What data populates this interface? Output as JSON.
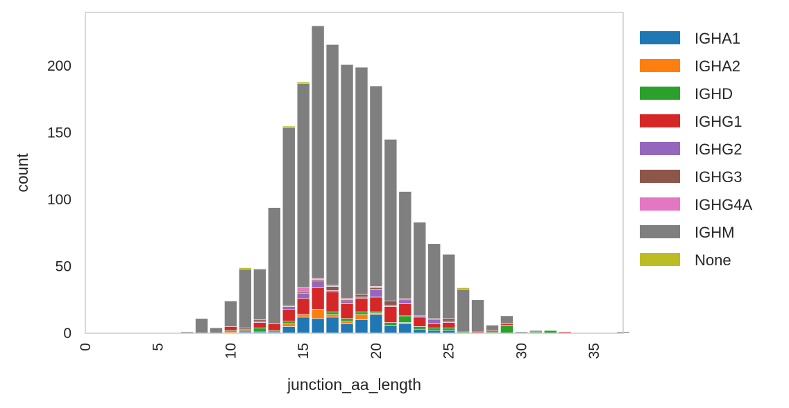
{
  "chart_data": {
    "type": "bar",
    "stacked": true,
    "title": "",
    "xlabel": "junction_aa_length",
    "ylabel": "count",
    "xlim": [
      0,
      37
    ],
    "ylim": [
      0,
      240
    ],
    "xticks": [
      0,
      5,
      10,
      15,
      20,
      25,
      30,
      35
    ],
    "yticks": [
      0,
      50,
      100,
      150,
      200
    ],
    "grid": false,
    "legend_position": "outside-right",
    "x": [
      7,
      8,
      9,
      10,
      11,
      12,
      13,
      14,
      15,
      16,
      17,
      18,
      19,
      20,
      21,
      22,
      23,
      24,
      25,
      26,
      27,
      28,
      29,
      30,
      31,
      32,
      33,
      34,
      35,
      36,
      37
    ],
    "series": [
      {
        "name": "IGHA1",
        "color": "#1f77b4",
        "values": [
          0,
          0,
          0,
          0,
          1,
          1,
          1,
          5,
          12,
          11,
          12,
          7,
          10,
          14,
          6,
          7,
          3,
          2,
          2,
          0,
          0,
          0,
          0,
          0,
          0,
          0,
          0,
          0,
          0,
          0,
          0
        ]
      },
      {
        "name": "IGHA2",
        "color": "#ff7f0e",
        "values": [
          0,
          0,
          0,
          1,
          0,
          0,
          0,
          2,
          2,
          7,
          2,
          2,
          4,
          1,
          0,
          1,
          0,
          0,
          0,
          0,
          0,
          0,
          0,
          0,
          0,
          0,
          0,
          0,
          0,
          0,
          0
        ]
      },
      {
        "name": "IGHD",
        "color": "#2ca02c",
        "values": [
          0,
          0,
          0,
          1,
          1,
          3,
          1,
          2,
          0,
          0,
          2,
          2,
          2,
          1,
          2,
          5,
          2,
          2,
          2,
          1,
          0,
          1,
          6,
          0,
          1,
          2,
          0,
          0,
          0,
          0,
          0
        ]
      },
      {
        "name": "IGHG1",
        "color": "#d62728",
        "values": [
          0,
          0,
          0,
          3,
          1,
          4,
          5,
          9,
          12,
          16,
          15,
          11,
          10,
          11,
          12,
          9,
          7,
          3,
          4,
          0,
          1,
          1,
          1,
          0,
          0,
          0,
          1,
          0,
          0,
          0,
          0
        ]
      },
      {
        "name": "IGHG2",
        "color": "#9467bd",
        "values": [
          0,
          0,
          0,
          0,
          0,
          1,
          0,
          2,
          4,
          5,
          1,
          2,
          1,
          6,
          1,
          3,
          1,
          3,
          1,
          0,
          0,
          0,
          0,
          0,
          0,
          0,
          0,
          0,
          0,
          0,
          0
        ]
      },
      {
        "name": "IGHG3",
        "color": "#8c564b",
        "values": [
          0,
          0,
          0,
          0,
          1,
          1,
          0,
          1,
          1,
          1,
          3,
          1,
          2,
          1,
          3,
          1,
          0,
          1,
          2,
          0,
          0,
          0,
          0,
          0,
          0,
          0,
          0,
          0,
          0,
          0,
          0
        ]
      },
      {
        "name": "IGHG4A",
        "color": "#e377c2",
        "values": [
          0,
          0,
          0,
          0,
          0,
          0,
          0,
          0,
          3,
          1,
          1,
          1,
          0,
          1,
          0,
          0,
          0,
          0,
          0,
          0,
          0,
          0,
          0,
          0,
          0,
          0,
          0,
          0,
          0,
          0,
          0
        ]
      },
      {
        "name": "IGHM",
        "color": "#7f7f7f",
        "values": [
          1,
          11,
          4,
          19,
          44,
          38,
          87,
          133,
          153,
          189,
          180,
          175,
          170,
          150,
          121,
          80,
          70,
          56,
          48,
          32,
          24,
          4,
          6,
          1,
          1,
          0,
          0,
          0,
          0,
          0,
          1
        ]
      },
      {
        "name": "None",
        "color": "#bcbd22",
        "values": [
          0,
          0,
          0,
          0,
          1,
          0,
          0,
          1,
          1,
          0,
          0,
          0,
          0,
          0,
          0,
          0,
          0,
          0,
          0,
          1,
          0,
          0,
          0,
          0,
          0,
          0,
          0,
          0,
          0,
          0,
          0
        ]
      }
    ]
  }
}
